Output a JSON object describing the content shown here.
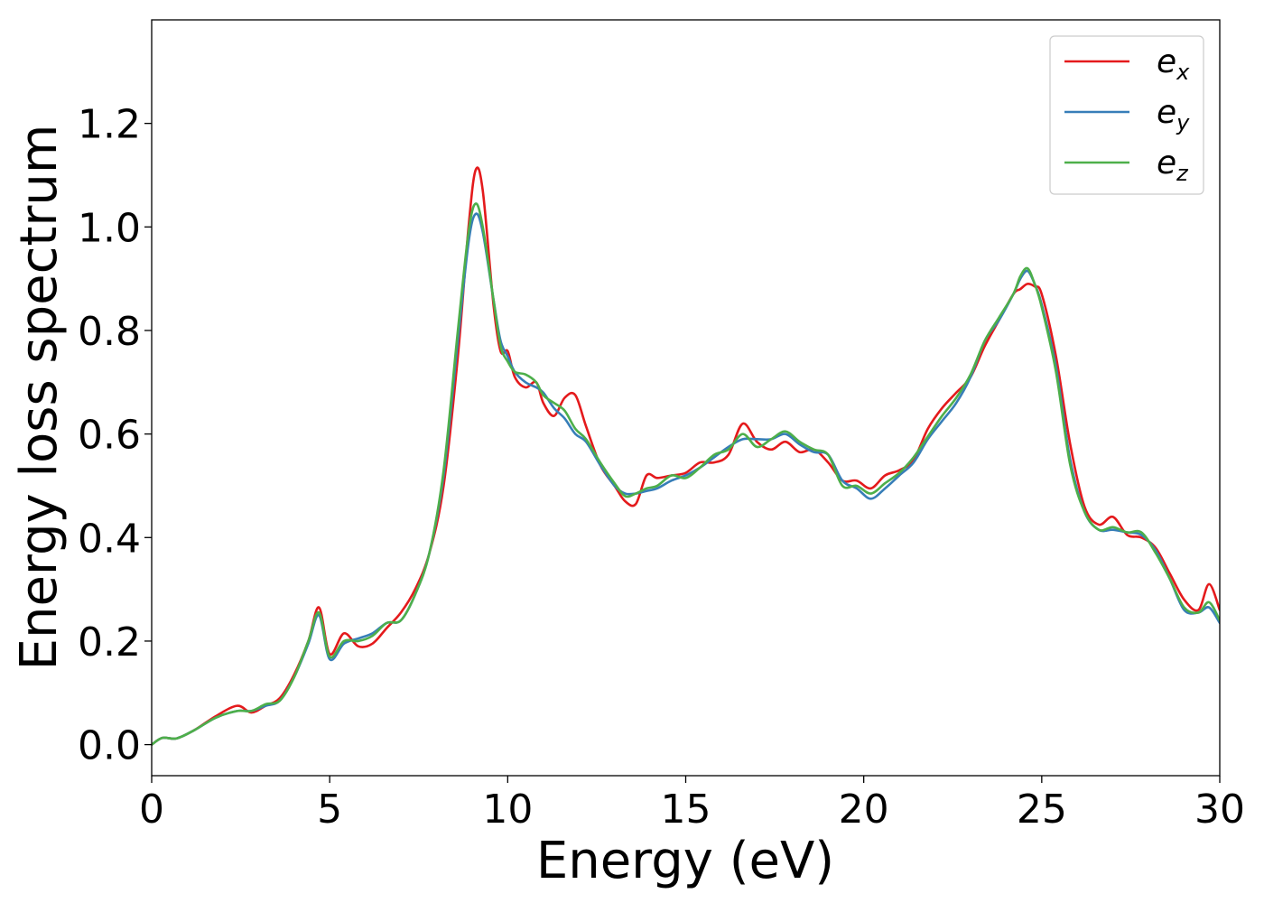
{
  "chart_data": {
    "type": "line",
    "title": "",
    "xlabel": "Energy (eV)",
    "ylabel": "Energy loss spectrum",
    "xlim": [
      0,
      30
    ],
    "ylim": [
      -0.06,
      1.4
    ],
    "xticks": [
      0,
      5,
      10,
      15,
      20,
      25,
      30
    ],
    "xtick_labels": [
      "0",
      "5",
      "10",
      "15",
      "20",
      "25",
      "30"
    ],
    "yticks": [
      0.0,
      0.2,
      0.4,
      0.6,
      0.8,
      1.0,
      1.2
    ],
    "ytick_labels": [
      "0.0",
      "0.2",
      "0.4",
      "0.6",
      "0.8",
      "1.0",
      "1.2"
    ],
    "grid": false,
    "legend_position": "top-right",
    "series": [
      {
        "name": "e_x",
        "label_base": "e",
        "label_sub": "x",
        "color": "#e41a1c",
        "x": [
          0,
          0.3,
          0.7,
          1.2,
          1.8,
          2.4,
          2.8,
          3.2,
          3.6,
          4.0,
          4.4,
          4.7,
          5.0,
          5.4,
          5.8,
          6.2,
          6.6,
          7.0,
          7.4,
          7.8,
          8.2,
          8.6,
          8.9,
          9.1,
          9.3,
          9.6,
          9.8,
          10.0,
          10.2,
          10.5,
          10.8,
          11.0,
          11.3,
          11.6,
          11.9,
          12.2,
          12.6,
          13.0,
          13.3,
          13.6,
          13.9,
          14.2,
          14.6,
          15.0,
          15.4,
          15.8,
          16.2,
          16.6,
          17.0,
          17.4,
          17.8,
          18.2,
          18.6,
          19.0,
          19.4,
          19.8,
          20.2,
          20.6,
          21.0,
          21.4,
          21.8,
          22.2,
          22.6,
          23.0,
          23.4,
          23.8,
          24.2,
          24.4,
          24.6,
          24.8,
          25.0,
          25.4,
          25.8,
          26.2,
          26.6,
          27.0,
          27.4,
          27.8,
          28.2,
          28.6,
          29.0,
          29.4,
          29.7,
          30.0
        ],
        "y": [
          0.0,
          0.013,
          0.012,
          0.028,
          0.055,
          0.075,
          0.062,
          0.075,
          0.09,
          0.135,
          0.2,
          0.265,
          0.175,
          0.215,
          0.19,
          0.195,
          0.225,
          0.255,
          0.3,
          0.37,
          0.5,
          0.75,
          1.0,
          1.11,
          1.07,
          0.85,
          0.76,
          0.76,
          0.71,
          0.69,
          0.7,
          0.66,
          0.635,
          0.67,
          0.675,
          0.615,
          0.54,
          0.5,
          0.47,
          0.465,
          0.52,
          0.515,
          0.52,
          0.525,
          0.545,
          0.545,
          0.56,
          0.62,
          0.585,
          0.57,
          0.585,
          0.565,
          0.57,
          0.545,
          0.51,
          0.51,
          0.495,
          0.52,
          0.53,
          0.55,
          0.61,
          0.65,
          0.68,
          0.71,
          0.77,
          0.82,
          0.87,
          0.88,
          0.89,
          0.885,
          0.87,
          0.75,
          0.58,
          0.46,
          0.425,
          0.44,
          0.405,
          0.4,
          0.38,
          0.33,
          0.28,
          0.26,
          0.31,
          0.26
        ]
      },
      {
        "name": "e_y",
        "label_base": "e",
        "label_sub": "y",
        "color": "#377eb8",
        "x": [
          0,
          0.3,
          0.7,
          1.2,
          1.8,
          2.4,
          2.8,
          3.2,
          3.6,
          4.0,
          4.4,
          4.7,
          5.0,
          5.4,
          5.8,
          6.2,
          6.6,
          7.0,
          7.4,
          7.8,
          8.2,
          8.6,
          8.9,
          9.1,
          9.3,
          9.6,
          9.8,
          10.0,
          10.2,
          10.5,
          10.8,
          11.0,
          11.3,
          11.6,
          11.9,
          12.2,
          12.6,
          13.0,
          13.3,
          13.6,
          13.9,
          14.2,
          14.6,
          15.0,
          15.4,
          15.8,
          16.2,
          16.6,
          17.0,
          17.4,
          17.8,
          18.2,
          18.6,
          19.0,
          19.4,
          19.8,
          20.2,
          20.6,
          21.0,
          21.4,
          21.8,
          22.2,
          22.6,
          23.0,
          23.4,
          23.8,
          24.2,
          24.4,
          24.6,
          24.8,
          25.0,
          25.4,
          25.8,
          26.2,
          26.6,
          27.0,
          27.4,
          27.8,
          28.2,
          28.6,
          29.0,
          29.4,
          29.7,
          30.0
        ],
        "y": [
          0.0,
          0.013,
          0.012,
          0.028,
          0.052,
          0.065,
          0.065,
          0.075,
          0.085,
          0.13,
          0.195,
          0.25,
          0.165,
          0.195,
          0.205,
          0.215,
          0.235,
          0.24,
          0.29,
          0.37,
          0.52,
          0.78,
          0.97,
          1.025,
          0.99,
          0.86,
          0.78,
          0.75,
          0.72,
          0.7,
          0.69,
          0.68,
          0.65,
          0.63,
          0.6,
          0.585,
          0.54,
          0.5,
          0.485,
          0.485,
          0.49,
          0.495,
          0.51,
          0.52,
          0.535,
          0.555,
          0.575,
          0.59,
          0.59,
          0.59,
          0.6,
          0.58,
          0.565,
          0.56,
          0.51,
          0.495,
          0.475,
          0.495,
          0.52,
          0.545,
          0.59,
          0.625,
          0.66,
          0.71,
          0.78,
          0.82,
          0.87,
          0.9,
          0.915,
          0.89,
          0.85,
          0.73,
          0.55,
          0.45,
          0.415,
          0.415,
          0.41,
          0.405,
          0.375,
          0.32,
          0.26,
          0.255,
          0.265,
          0.235
        ]
      },
      {
        "name": "e_z",
        "label_base": "e",
        "label_sub": "z",
        "color": "#4daf4a",
        "x": [
          0,
          0.3,
          0.7,
          1.2,
          1.8,
          2.4,
          2.8,
          3.2,
          3.6,
          4.0,
          4.4,
          4.7,
          5.0,
          5.4,
          5.8,
          6.2,
          6.6,
          7.0,
          7.4,
          7.8,
          8.2,
          8.6,
          8.9,
          9.1,
          9.3,
          9.6,
          9.8,
          10.0,
          10.2,
          10.5,
          10.8,
          11.0,
          11.3,
          11.6,
          11.9,
          12.2,
          12.6,
          13.0,
          13.3,
          13.6,
          13.9,
          14.2,
          14.6,
          15.0,
          15.4,
          15.8,
          16.2,
          16.6,
          17.0,
          17.4,
          17.8,
          18.2,
          18.6,
          19.0,
          19.4,
          19.8,
          20.2,
          20.6,
          21.0,
          21.4,
          21.8,
          22.2,
          22.6,
          23.0,
          23.4,
          23.8,
          24.2,
          24.4,
          24.6,
          24.8,
          25.0,
          25.4,
          25.8,
          26.2,
          26.6,
          27.0,
          27.4,
          27.8,
          28.2,
          28.6,
          29.0,
          29.4,
          29.7,
          30.0
        ],
        "y": [
          0.0,
          0.013,
          0.012,
          0.028,
          0.052,
          0.065,
          0.065,
          0.078,
          0.085,
          0.13,
          0.2,
          0.255,
          0.17,
          0.2,
          0.2,
          0.21,
          0.235,
          0.24,
          0.29,
          0.37,
          0.53,
          0.8,
          0.99,
          1.045,
          1.0,
          0.86,
          0.77,
          0.74,
          0.72,
          0.715,
          0.7,
          0.675,
          0.66,
          0.645,
          0.61,
          0.59,
          0.545,
          0.505,
          0.48,
          0.485,
          0.495,
          0.5,
          0.52,
          0.515,
          0.535,
          0.56,
          0.57,
          0.6,
          0.575,
          0.59,
          0.605,
          0.585,
          0.57,
          0.56,
          0.5,
          0.5,
          0.485,
          0.505,
          0.525,
          0.555,
          0.595,
          0.635,
          0.67,
          0.715,
          0.78,
          0.825,
          0.87,
          0.905,
          0.92,
          0.89,
          0.845,
          0.72,
          0.54,
          0.45,
          0.415,
          0.42,
          0.41,
          0.41,
          0.37,
          0.32,
          0.265,
          0.255,
          0.275,
          0.24
        ]
      }
    ]
  }
}
